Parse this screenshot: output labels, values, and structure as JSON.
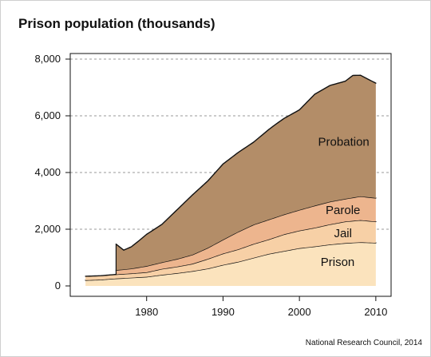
{
  "chart_data": {
    "type": "area",
    "title": "Prison population (thousands)",
    "source": "National Research Council, 2014",
    "xlabel": "",
    "ylabel": "",
    "xlim": [
      1970,
      2012
    ],
    "ylim": [
      0,
      8000
    ],
    "stacked": true,
    "grid": "horizontal-dashed",
    "legend": "inline-labels",
    "x_ticks": [
      1980,
      1990,
      2000,
      2010
    ],
    "x_tick_labels": [
      "1980",
      "1990",
      "2000",
      "2010"
    ],
    "y_ticks": [
      0,
      2000,
      4000,
      6000,
      8000
    ],
    "y_tick_labels": [
      "0",
      "2,000",
      "4,000",
      "6,000",
      "8,000"
    ],
    "series": [
      {
        "name": "Prison",
        "color": "#fbe3bd",
        "x": [
          1972,
          1974,
          1976,
          1978,
          1980,
          1982,
          1984,
          1986,
          1988,
          1990,
          1992,
          1994,
          1996,
          1998,
          2000,
          2002,
          2004,
          2006,
          2008,
          2010
        ],
        "values": [
          200,
          220,
          260,
          290,
          320,
          390,
          450,
          520,
          610,
          740,
          850,
          990,
          1130,
          1230,
          1330,
          1390,
          1460,
          1510,
          1540,
          1520
        ]
      },
      {
        "name": "Jail",
        "color": "#f7d0a6",
        "x": [
          1972,
          1974,
          1976,
          1978,
          1980,
          1982,
          1984,
          1986,
          1988,
          1990,
          1992,
          1994,
          1996,
          1998,
          2000,
          2002,
          2004,
          2006,
          2008,
          2010
        ],
        "values": [
          140,
          140,
          145,
          150,
          160,
          210,
          230,
          260,
          340,
          400,
          440,
          490,
          510,
          590,
          620,
          660,
          710,
          760,
          780,
          750
        ]
      },
      {
        "name": "Parole",
        "color": "#edb58e",
        "x": [
          1976,
          1978,
          1980,
          1982,
          1984,
          1986,
          1988,
          1990,
          1992,
          1994,
          1996,
          1998,
          2000,
          2002,
          2004,
          2006,
          2008,
          2010
        ],
        "values": [
          150,
          170,
          220,
          230,
          270,
          320,
          390,
          490,
          620,
          680,
          700,
          700,
          730,
          780,
          800,
          800,
          840,
          830
        ]
      },
      {
        "name": "Probation",
        "color": "#b38d68",
        "x": [
          1976,
          1977,
          1978,
          1979,
          1980,
          1982,
          1984,
          1986,
          1988,
          1990,
          1992,
          1994,
          1996,
          1997,
          1998,
          2000,
          2002,
          2004,
          2006,
          2007,
          2008,
          2010
        ],
        "values": [
          920,
          680,
          770,
          940,
          1120,
          1340,
          1740,
          2110,
          2360,
          2670,
          2800,
          2910,
          3180,
          3290,
          3390,
          3530,
          3930,
          4100,
          4150,
          4310,
          4270,
          4050
        ]
      }
    ],
    "label_positions": {
      "Prison": {
        "x": 2005,
        "y": 700
      },
      "Jail": {
        "x": 2005.7,
        "y": 1720
      },
      "Parole": {
        "x": 2005.7,
        "y": 2540
      },
      "Probation": {
        "x": 2005.8,
        "y": 4950
      }
    }
  }
}
